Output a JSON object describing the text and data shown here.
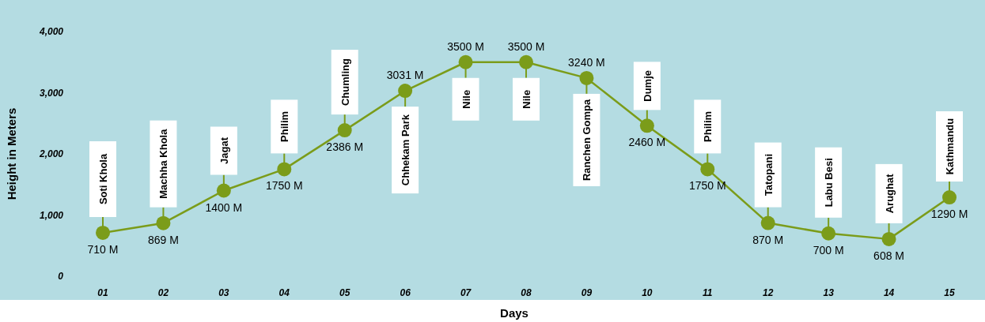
{
  "chart_data": {
    "type": "line",
    "xlabel": "Days",
    "ylabel": "Height in Meters",
    "categories": [
      "01",
      "02",
      "03",
      "04",
      "05",
      "06",
      "07",
      "08",
      "09",
      "10",
      "11",
      "12",
      "13",
      "14",
      "15"
    ],
    "values": [
      710,
      869,
      1400,
      1750,
      2386,
      3031,
      3500,
      3500,
      3240,
      2460,
      1750,
      870,
      700,
      608,
      1290
    ],
    "value_labels": [
      "710 M",
      "869 M",
      "1400 M",
      "1750 M",
      "2386 M",
      "3031 M",
      "3500 M",
      "3500 M",
      "3240 M",
      "2460 M",
      "1750 M",
      "870 M",
      "700 M",
      "608 M",
      "1290 M"
    ],
    "color": "#7b9c1a",
    "marker": "circle",
    "ylim": [
      0,
      4000
    ],
    "yticks": [
      0,
      {
        "value": 1000,
        "label": "1,000"
      },
      {
        "value": 2000,
        "label": "2,000"
      },
      {
        "value": 3000,
        "label": "3,000"
      },
      {
        "value": 4000,
        "label": "4,000"
      }
    ],
    "annotations": [
      {
        "text": "Soti Khola",
        "x": "01",
        "y": 710
      },
      {
        "text": "Machha Khola",
        "x": "02",
        "y": 869
      },
      {
        "text": "Jagat",
        "x": "03",
        "y": 1400
      },
      {
        "text": "Philim",
        "x": "04",
        "y": 1750
      },
      {
        "text": "Chumling",
        "x": "05",
        "y": 2386
      },
      {
        "text": "Chhekam Park",
        "x": "06",
        "y": 3031
      },
      {
        "text": "Nile",
        "x": "07",
        "y": 3500
      },
      {
        "text": "Nile",
        "x": "08",
        "y": 3500
      },
      {
        "text": "Ranchen Gompa",
        "x": "09",
        "y": 3240
      },
      {
        "text": "Dumje",
        "x": "10",
        "y": 2460
      },
      {
        "text": "Philim",
        "x": "11",
        "y": 1750
      },
      {
        "text": "Tatopani",
        "x": "12",
        "y": 870
      },
      {
        "text": "Labu Besi",
        "x": "13",
        "y": 700
      },
      {
        "text": "Arughat",
        "x": "14",
        "y": 608
      },
      {
        "text": "Kathmandu",
        "x": "15",
        "y": 1290
      }
    ]
  }
}
